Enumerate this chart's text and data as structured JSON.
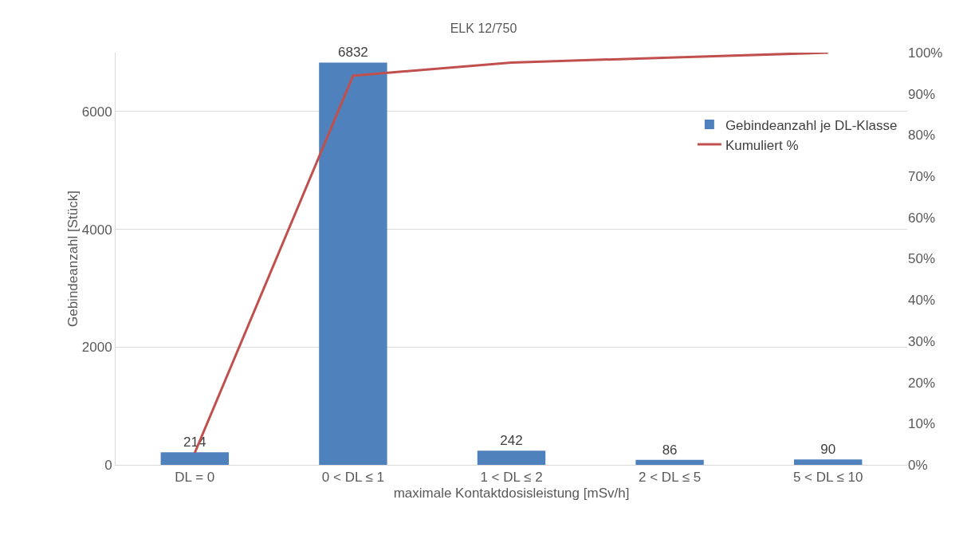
{
  "chart_data": {
    "type": "bar",
    "title": "ELK 12/750",
    "xlabel": "maximale Kontaktdosisleistung [mSv/h]",
    "ylabel": "Gebindeanzahl [Stück]",
    "categories": [
      "DL = 0",
      "0 < DL ≤ 1",
      "1 < DL ≤ 2",
      "2 < DL ≤ 5",
      "5 < DL ≤ 10"
    ],
    "series": [
      {
        "name": "Gebindeanzahl je DL-Klasse",
        "color": "#4f81bd",
        "values": [
          214,
          6832,
          242,
          86,
          90
        ],
        "value_labels": [
          "214",
          "6832",
          "242",
          "86",
          "90"
        ]
      },
      {
        "name": "Kumuliert %",
        "type": "line",
        "axis": "y2",
        "color": "#c0504d",
        "values": [
          2.9,
          94.4,
          97.6,
          98.8,
          100
        ]
      }
    ],
    "ylim": [
      0,
      7000
    ],
    "yticks": [
      0,
      2000,
      4000,
      6000
    ],
    "y2lim": [
      0,
      100
    ],
    "y2ticks": [
      {
        "value": 0,
        "label": "0%"
      },
      {
        "value": 10,
        "label": "10%"
      },
      {
        "value": 20,
        "label": "20%"
      },
      {
        "value": 30,
        "label": "30%"
      },
      {
        "value": 40,
        "label": "40%"
      },
      {
        "value": 50,
        "label": "50%"
      },
      {
        "value": 60,
        "label": "60%"
      },
      {
        "value": 70,
        "label": "70%"
      },
      {
        "value": 80,
        "label": "80%"
      },
      {
        "value": 90,
        "label": "90%"
      },
      {
        "value": 100,
        "label": "100%"
      }
    ],
    "grid": "y",
    "legend": "right",
    "marker": "none",
    "line_style": "solid"
  }
}
